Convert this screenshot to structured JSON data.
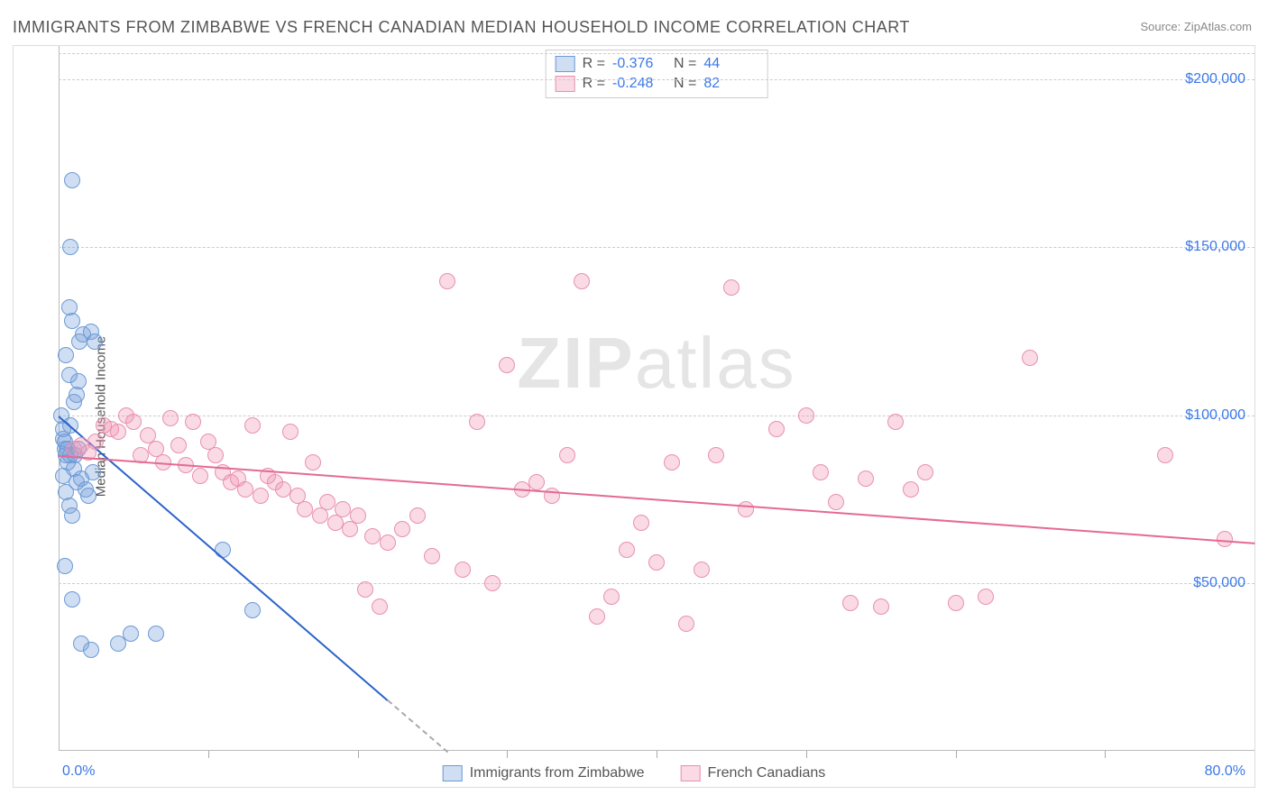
{
  "title": "IMMIGRANTS FROM ZIMBABWE VS FRENCH CANADIAN MEDIAN HOUSEHOLD INCOME CORRELATION CHART",
  "source_label": "Source: ZipAtlas.com",
  "watermark": {
    "prefix": "ZIP",
    "suffix": "atlas"
  },
  "chart": {
    "type": "scatter",
    "ylabel": "Median Household Income",
    "background_color": "#ffffff",
    "grid_color": "#cccccc",
    "axis_color": "#bbbbbb",
    "label_color": "#3b78e7",
    "text_color": "#555555",
    "xlim": [
      0,
      80
    ],
    "ylim": [
      0,
      210000
    ],
    "xtick_labels": [
      "0.0%",
      "80.0%"
    ],
    "ytick_values": [
      50000,
      100000,
      150000,
      200000
    ],
    "ytick_labels": [
      "$50,000",
      "$100,000",
      "$150,000",
      "$200,000"
    ],
    "xtick_positions_pct": [
      10,
      20,
      30,
      40,
      50,
      60,
      70
    ],
    "point_radius": 9,
    "point_border_width": 1.5,
    "series": [
      {
        "name": "Immigrants from Zimbabwe",
        "fill": "rgba(120,160,220,0.35)",
        "stroke": "#6a9ad4",
        "trend_color": "#2a63c9",
        "r": "-0.376",
        "n": "44",
        "trend": {
          "x1": 0,
          "y1": 100000,
          "x2": 26,
          "y2": 0,
          "dash_after_x": 22
        },
        "points": [
          [
            0.2,
            100000
          ],
          [
            0.3,
            93000
          ],
          [
            0.5,
            88000
          ],
          [
            0.4,
            90000
          ],
          [
            0.6,
            86000
          ],
          [
            0.3,
            82000
          ],
          [
            0.8,
            97000
          ],
          [
            1.0,
            104000
          ],
          [
            1.2,
            106000
          ],
          [
            1.3,
            110000
          ],
          [
            0.7,
            112000
          ],
          [
            0.5,
            118000
          ],
          [
            1.4,
            122000
          ],
          [
            1.6,
            124000
          ],
          [
            2.2,
            125000
          ],
          [
            2.4,
            122000
          ],
          [
            0.9,
            128000
          ],
          [
            0.7,
            132000
          ],
          [
            0.8,
            150000
          ],
          [
            0.9,
            170000
          ],
          [
            0.3,
            96000
          ],
          [
            0.4,
            92000
          ],
          [
            0.6,
            90000
          ],
          [
            0.8,
            88000
          ],
          [
            1.0,
            84000
          ],
          [
            1.2,
            80000
          ],
          [
            1.5,
            81000
          ],
          [
            1.8,
            78000
          ],
          [
            2.0,
            76000
          ],
          [
            2.3,
            83000
          ],
          [
            0.5,
            77000
          ],
          [
            0.7,
            73000
          ],
          [
            0.9,
            70000
          ],
          [
            1.1,
            88000
          ],
          [
            1.3,
            90000
          ],
          [
            0.4,
            55000
          ],
          [
            0.9,
            45000
          ],
          [
            1.5,
            32000
          ],
          [
            2.2,
            30000
          ],
          [
            4.0,
            32000
          ],
          [
            4.8,
            35000
          ],
          [
            6.5,
            35000
          ],
          [
            11.0,
            60000
          ],
          [
            13.0,
            42000
          ]
        ]
      },
      {
        "name": "French Canadians",
        "fill": "rgba(240,150,180,0.35)",
        "stroke": "#e890ae",
        "trend_color": "#e46a94",
        "r": "-0.248",
        "n": "82",
        "trend": {
          "x1": 0,
          "y1": 88000,
          "x2": 80,
          "y2": 62000
        },
        "points": [
          [
            1,
            90000
          ],
          [
            1.5,
            91000
          ],
          [
            2,
            89000
          ],
          [
            2.5,
            92000
          ],
          [
            3,
            97000
          ],
          [
            3.5,
            96000
          ],
          [
            4,
            95000
          ],
          [
            4.5,
            100000
          ],
          [
            5,
            98000
          ],
          [
            5.5,
            88000
          ],
          [
            6,
            94000
          ],
          [
            6.5,
            90000
          ],
          [
            7,
            86000
          ],
          [
            7.5,
            99000
          ],
          [
            8,
            91000
          ],
          [
            8.5,
            85000
          ],
          [
            9,
            98000
          ],
          [
            9.5,
            82000
          ],
          [
            10,
            92000
          ],
          [
            10.5,
            88000
          ],
          [
            11,
            83000
          ],
          [
            11.5,
            80000
          ],
          [
            12,
            81000
          ],
          [
            12.5,
            78000
          ],
          [
            13,
            97000
          ],
          [
            13.5,
            76000
          ],
          [
            14,
            82000
          ],
          [
            14.5,
            80000
          ],
          [
            15,
            78000
          ],
          [
            15.5,
            95000
          ],
          [
            16,
            76000
          ],
          [
            16.5,
            72000
          ],
          [
            17,
            86000
          ],
          [
            17.5,
            70000
          ],
          [
            18,
            74000
          ],
          [
            18.5,
            68000
          ],
          [
            19,
            72000
          ],
          [
            19.5,
            66000
          ],
          [
            20,
            70000
          ],
          [
            20.5,
            48000
          ],
          [
            21,
            64000
          ],
          [
            21.5,
            43000
          ],
          [
            22,
            62000
          ],
          [
            23,
            66000
          ],
          [
            24,
            70000
          ],
          [
            25,
            58000
          ],
          [
            26,
            140000
          ],
          [
            27,
            54000
          ],
          [
            28,
            98000
          ],
          [
            29,
            50000
          ],
          [
            30,
            115000
          ],
          [
            31,
            78000
          ],
          [
            32,
            80000
          ],
          [
            33,
            76000
          ],
          [
            34,
            88000
          ],
          [
            35,
            140000
          ],
          [
            36,
            40000
          ],
          [
            37,
            46000
          ],
          [
            38,
            60000
          ],
          [
            39,
            68000
          ],
          [
            40,
            56000
          ],
          [
            41,
            86000
          ],
          [
            42,
            38000
          ],
          [
            43,
            54000
          ],
          [
            44,
            88000
          ],
          [
            45,
            138000
          ],
          [
            46,
            72000
          ],
          [
            48,
            96000
          ],
          [
            50,
            100000
          ],
          [
            51,
            83000
          ],
          [
            52,
            74000
          ],
          [
            53,
            44000
          ],
          [
            54,
            81000
          ],
          [
            55,
            43000
          ],
          [
            56,
            98000
          ],
          [
            57,
            78000
          ],
          [
            58,
            83000
          ],
          [
            60,
            44000
          ],
          [
            62,
            46000
          ],
          [
            65,
            117000
          ],
          [
            74,
            88000
          ],
          [
            78,
            63000
          ]
        ]
      }
    ],
    "legend": {
      "items": [
        "Immigrants from Zimbabwe",
        "French Canadians"
      ]
    }
  }
}
